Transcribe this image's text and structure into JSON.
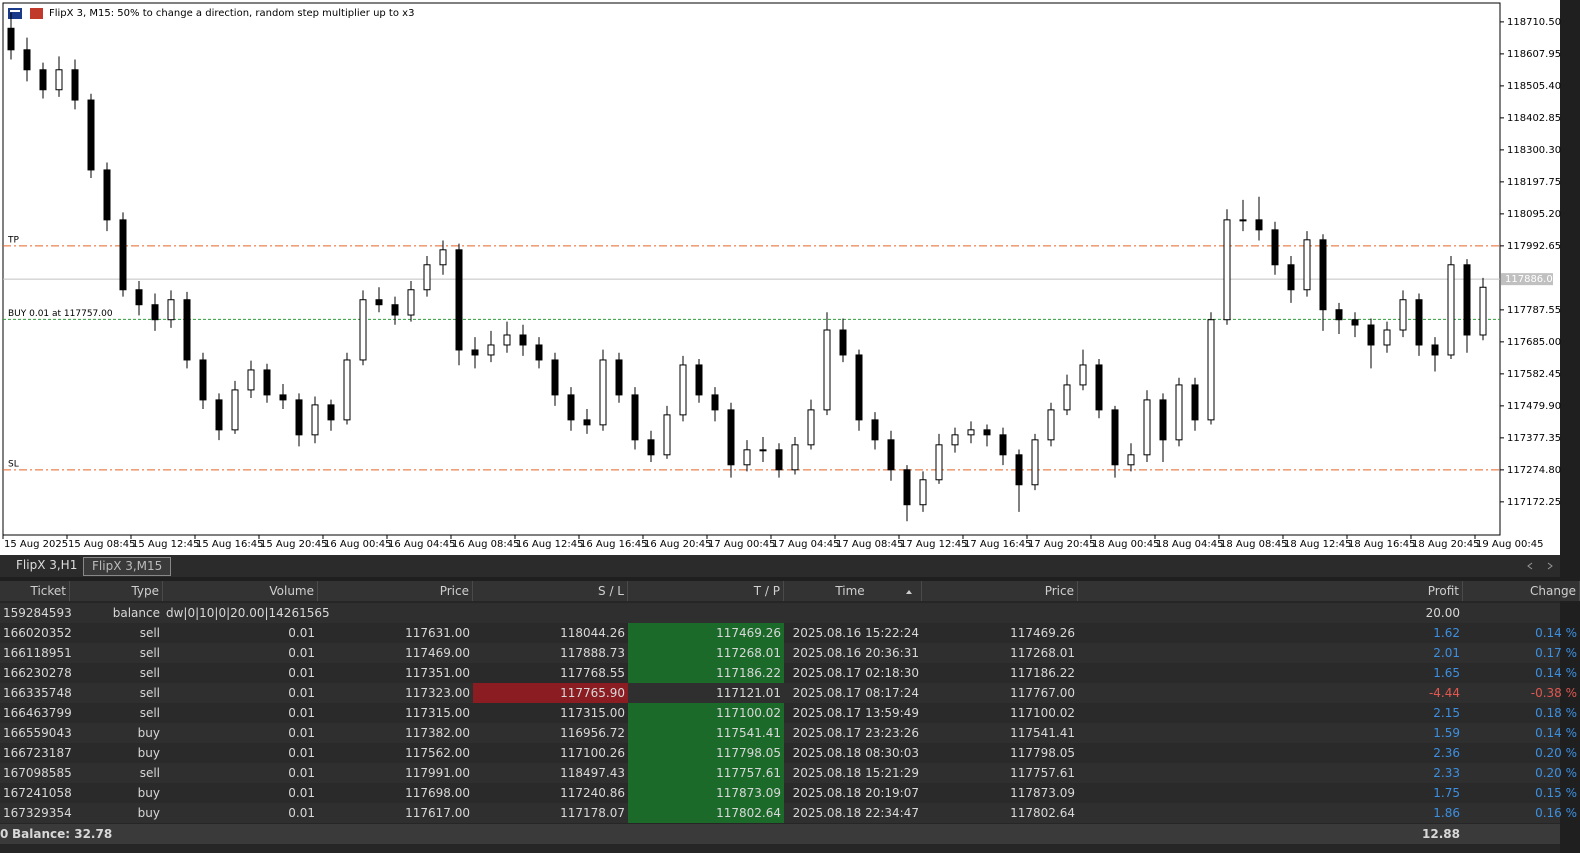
{
  "chart_data": {
    "type": "candlestick",
    "title": "FlipX 3, M15:  50% to change a direction, random step multiplier up to x3",
    "open": [
      118690,
      118621,
      118557,
      118493,
      118557,
      118460,
      118236,
      118076,
      117852,
      117804,
      117756,
      117820,
      117627,
      117499,
      117403,
      117531,
      117595,
      117515,
      117499,
      117387,
      117483,
      117435,
      117627,
      117820,
      117804,
      117771,
      117852,
      117932,
      117980,
      117659,
      117643,
      117675,
      117707,
      117675,
      117627,
      117515,
      117435,
      117419,
      117627,
      117515,
      117371,
      117323,
      117451,
      117611,
      117515,
      117467,
      117291,
      117339,
      117339,
      117275,
      117355,
      117467,
      117723,
      117643,
      117435,
      117371,
      117275,
      117163,
      117243,
      117355,
      117387,
      117403,
      117387,
      117323,
      117227,
      117371,
      117467,
      117547,
      117611,
      117467,
      117291,
      117323,
      117499,
      117371,
      117547,
      117435,
      117756,
      118076,
      118076,
      118044,
      117932,
      117852,
      118012,
      117788,
      117756,
      117739,
      117675,
      117723,
      117820,
      117675,
      117643,
      117932,
      117707
    ],
    "high": [
      118740,
      118660,
      118580,
      118600,
      118590,
      118480,
      118260,
      118100,
      117880,
      117840,
      117850,
      117845,
      117650,
      117520,
      117560,
      117625,
      117615,
      117550,
      117520,
      117510,
      117500,
      117650,
      117850,
      117860,
      117830,
      117880,
      117960,
      118010,
      118000,
      117700,
      117720,
      117750,
      117740,
      117700,
      117650,
      117540,
      117470,
      117660,
      117650,
      117540,
      117400,
      117480,
      117640,
      117630,
      117540,
      117490,
      117370,
      117380,
      117360,
      117380,
      117500,
      117780,
      117760,
      117660,
      117460,
      117400,
      117290,
      117270,
      117390,
      117410,
      117430,
      117420,
      117410,
      117340,
      117390,
      117490,
      117580,
      117660,
      117630,
      117480,
      117360,
      117530,
      117520,
      117570,
      117570,
      117780,
      118110,
      118140,
      118150,
      118070,
      117960,
      118040,
      118030,
      117810,
      117780,
      117760,
      117750,
      117850,
      117840,
      117700,
      117960,
      117950,
      117890
    ],
    "low": [
      118590,
      118520,
      118465,
      118470,
      118430,
      118210,
      118040,
      117830,
      117770,
      117720,
      117730,
      117600,
      117470,
      117370,
      117390,
      117505,
      117490,
      117470,
      117350,
      117360,
      117400,
      117420,
      117610,
      117780,
      117740,
      117750,
      117830,
      117900,
      117610,
      117600,
      117620,
      117650,
      117640,
      117600,
      117480,
      117400,
      117390,
      117400,
      117490,
      117340,
      117300,
      117310,
      117430,
      117490,
      117430,
      117250,
      117270,
      117300,
      117250,
      117260,
      117340,
      117450,
      117620,
      117400,
      117340,
      117240,
      117110,
      117140,
      117230,
      117330,
      117360,
      117350,
      117290,
      117140,
      117210,
      117350,
      117450,
      117530,
      117440,
      117250,
      117270,
      117300,
      117300,
      117350,
      117400,
      117420,
      117740,
      118040,
      118010,
      117900,
      117810,
      117830,
      117720,
      117710,
      117700,
      117600,
      117650,
      117700,
      117640,
      117590,
      117630,
      117650,
      117690
    ],
    "close": [
      118621,
      118557,
      118493,
      118557,
      118460,
      118236,
      118076,
      117852,
      117804,
      117756,
      117820,
      117627,
      117499,
      117403,
      117531,
      117595,
      117515,
      117499,
      117387,
      117483,
      117435,
      117627,
      117820,
      117804,
      117771,
      117852,
      117932,
      117980,
      117659,
      117643,
      117675,
      117707,
      117675,
      117627,
      117515,
      117435,
      117419,
      117627,
      117515,
      117371,
      117323,
      117451,
      117611,
      117515,
      117467,
      117291,
      117339,
      117339,
      117275,
      117355,
      117467,
      117723,
      117643,
      117435,
      117371,
      117275,
      117163,
      117243,
      117355,
      117387,
      117403,
      117387,
      117323,
      117227,
      117371,
      117467,
      117547,
      117611,
      117467,
      117291,
      117323,
      117499,
      117371,
      117547,
      117435,
      117756,
      118076,
      118076,
      118044,
      117932,
      117852,
      118012,
      117788,
      117756,
      117739,
      117675,
      117723,
      117820,
      117675,
      117643,
      117932,
      117707,
      117860
    ],
    "x_tick_labels": [
      "15 Aug 2025",
      "15 Aug 08:45",
      "15 Aug 12:45",
      "15 Aug 16:45",
      "15 Aug 20:45",
      "16 Aug 00:45",
      "16 Aug 04:45",
      "16 Aug 08:45",
      "16 Aug 12:45",
      "16 Aug 16:45",
      "16 Aug 20:45",
      "17 Aug 00:45",
      "17 Aug 04:45",
      "17 Aug 08:45",
      "17 Aug 12:45",
      "17 Aug 16:45",
      "17 Aug 20:45",
      "18 Aug 00:45",
      "18 Aug 04:45",
      "18 Aug 08:45",
      "18 Aug 12:45",
      "18 Aug 16:45",
      "18 Aug 20:45",
      "19 Aug 00:45"
    ],
    "ylim": [
      117066,
      118771
    ],
    "yticks": [
      {
        "value": 118710.5,
        "label": "118710.50"
      },
      {
        "value": 118607.95,
        "label": "118607.95"
      },
      {
        "value": 118505.4,
        "label": "118505.40"
      },
      {
        "value": 118402.85,
        "label": "118402.85"
      },
      {
        "value": 118300.3,
        "label": "118300.30"
      },
      {
        "value": 118197.75,
        "label": "118197.75"
      },
      {
        "value": 118095.2,
        "label": "118095.20"
      },
      {
        "value": 117992.65,
        "label": "117992.65"
      },
      {
        "value": 117787.55,
        "label": "117787.55"
      },
      {
        "value": 117685,
        "label": "117685.00"
      },
      {
        "value": 117582.45,
        "label": "117582.45"
      },
      {
        "value": 117479.9,
        "label": "117479.90"
      },
      {
        "value": 117377.35,
        "label": "117377.35"
      },
      {
        "value": 117274.8,
        "label": "117274.80"
      },
      {
        "value": 117172.25,
        "label": "117172.25"
      }
    ],
    "levels": [
      {
        "label": "TP",
        "value": 117992.65,
        "color": "#e8642a",
        "dash": "8 3 2 3"
      },
      {
        "label": "BUY 0.01 at 117757.00",
        "value": 117757,
        "color": "#2e9e3a",
        "dash": "3 2"
      },
      {
        "label": "SL",
        "value": 117274.8,
        "color": "#e8642a",
        "dash": "8 3 2 3"
      }
    ],
    "current_price": {
      "value": 117886,
      "label": "117886.00"
    },
    "up_color": "#ffffff",
    "down_color": "#000000"
  },
  "tabs": [
    "FlipX 3,H1",
    "FlipX 3,M15"
  ],
  "table": {
    "headers": [
      "Ticket",
      "Type",
      "Volume",
      "Price",
      "S / L",
      "T / P",
      "Time",
      "Price",
      "Profit",
      "Change"
    ],
    "balance_row": {
      "ticket": "159284593",
      "type": "balance",
      "comment": "dw|0|10|0|20.00|14261565",
      "profit": "20.00"
    },
    "rows": [
      {
        "cells": [
          "166020352",
          "sell",
          "0.01",
          "117631.00",
          "118044.26",
          "117469.26",
          "2025.08.16 15:22:24",
          "117469.26",
          "1.62",
          "0.14 %"
        ],
        "closed_by": "tp"
      },
      {
        "cells": [
          "166118951",
          "sell",
          "0.01",
          "117469.00",
          "117888.73",
          "117268.01",
          "2025.08.16 20:36:31",
          "117268.01",
          "2.01",
          "0.17 %"
        ],
        "closed_by": "tp"
      },
      {
        "cells": [
          "166230278",
          "sell",
          "0.01",
          "117351.00",
          "117768.55",
          "117186.22",
          "2025.08.17 02:18:30",
          "117186.22",
          "1.65",
          "0.14 %"
        ],
        "closed_by": "tp"
      },
      {
        "cells": [
          "166335748",
          "sell",
          "0.01",
          "117323.00",
          "117765.90",
          "117121.01",
          "2025.08.17 08:17:24",
          "117767.00",
          "-4.44",
          "-0.38 %"
        ],
        "closed_by": "sl"
      },
      {
        "cells": [
          "166463799",
          "sell",
          "0.01",
          "117315.00",
          "117315.00",
          "117100.02",
          "2025.08.17 13:59:49",
          "117100.02",
          "2.15",
          "0.18 %"
        ],
        "closed_by": "tp"
      },
      {
        "cells": [
          "166559043",
          "buy",
          "0.01",
          "117382.00",
          "116956.72",
          "117541.41",
          "2025.08.17 23:23:26",
          "117541.41",
          "1.59",
          "0.14 %"
        ],
        "closed_by": "tp"
      },
      {
        "cells": [
          "166723187",
          "buy",
          "0.01",
          "117562.00",
          "117100.26",
          "117798.05",
          "2025.08.18 08:30:03",
          "117798.05",
          "2.36",
          "0.20 %"
        ],
        "closed_by": "tp"
      },
      {
        "cells": [
          "167098585",
          "sell",
          "0.01",
          "117991.00",
          "118497.43",
          "117757.61",
          "2025.08.18 15:21:29",
          "117757.61",
          "2.33",
          "0.20 %"
        ],
        "closed_by": "tp"
      },
      {
        "cells": [
          "167241058",
          "buy",
          "0.01",
          "117698.00",
          "117240.86",
          "117873.09",
          "2025.08.18 20:19:07",
          "117873.09",
          "1.75",
          "0.15 %"
        ],
        "closed_by": "tp"
      },
      {
        "cells": [
          "167329354",
          "buy",
          "0.01",
          "117617.00",
          "117178.07",
          "117802.64",
          "2025.08.18 22:34:47",
          "117802.64",
          "1.86",
          "0.16 %"
        ],
        "closed_by": "tp"
      }
    ]
  },
  "footer": {
    "lead": "0",
    "balance": "Balance: 32.78",
    "profit": "12.88"
  }
}
